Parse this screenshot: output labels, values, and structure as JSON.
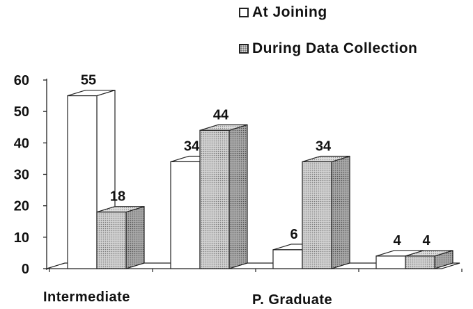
{
  "chart_data": {
    "type": "bar",
    "style": "3d-clustered-column",
    "categories": [
      "Intermediate",
      "",
      "P. Graduate",
      ""
    ],
    "series": [
      {
        "name": "At Joining",
        "values": [
          55,
          34,
          6,
          4
        ],
        "color": "#ffffff"
      },
      {
        "name": "During Data Collection",
        "values": [
          18,
          44,
          34,
          4
        ],
        "color": "#c8c8c8",
        "pattern": "dotted"
      }
    ],
    "data_labels": {
      "At Joining": [
        "55",
        "34",
        "6",
        "4"
      ],
      "During Data Collection": [
        "18",
        "44",
        "34",
        "4"
      ]
    },
    "yticks": [
      "0",
      "10",
      "20",
      "30",
      "40",
      "50",
      "60"
    ],
    "ylim": [
      0,
      60
    ],
    "title": "",
    "xlabel": "",
    "ylabel": "",
    "grid": false,
    "legend_position": "top-right"
  }
}
